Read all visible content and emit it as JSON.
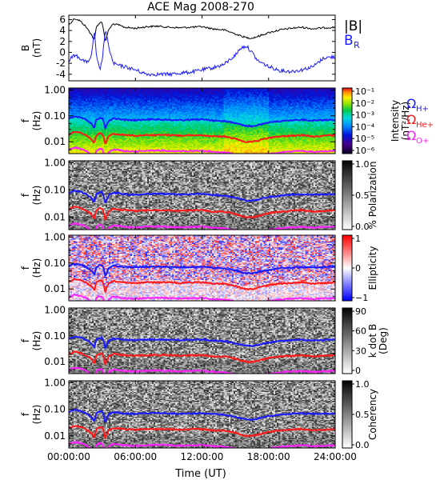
{
  "title": "ACE Mag 2008-270",
  "colors": {
    "B_total": "#000000",
    "B_R": "#1a1aff",
    "H_plus": "#1a1aff",
    "He_plus": "#ff1a1a",
    "O_plus": "#ff22ff"
  },
  "chart_data": {
    "type": "line",
    "x_label": "Time (UT)",
    "x_ticks": [
      "00:00:00",
      "06:00:00",
      "12:00:00",
      "18:00:00",
      "24:00:00"
    ],
    "x_range": [
      0,
      24
    ],
    "panels": [
      {
        "id": "b",
        "ylabel_line1": "B",
        "ylabel_line2": "(nT)",
        "y_ticks": [
          "6",
          "4",
          "2",
          "0",
          "-2",
          "-4"
        ],
        "y_tick_values": [
          6,
          4,
          2,
          0,
          -2,
          -4
        ],
        "y_range": [
          -5.2,
          6.8
        ],
        "legend": [
          {
            "text": "|B|",
            "sub": "",
            "color": "#000000"
          },
          {
            "text": "B",
            "sub": "R",
            "color": "#1a1aff"
          }
        ],
        "series": [
          {
            "name": "|B|",
            "color": "#000000",
            "x": [
              0,
              0.5,
              1,
              1.5,
              2,
              2.3,
              2.5,
              2.8,
              3,
              3.3,
              3.6,
              4,
              4.5,
              5,
              6,
              7,
              8,
              9,
              10,
              11,
              12,
              13,
              14,
              15,
              15.5,
              16,
              16.5,
              17,
              18,
              19,
              20,
              21,
              22,
              23,
              24
            ],
            "y": [
              5.0,
              6.2,
              5.8,
              4.8,
              3.4,
              2.2,
              4.8,
              5.4,
              5.6,
              2.0,
              4.2,
              5.2,
              5.0,
              4.6,
              4.4,
              4.7,
              4.8,
              4.6,
              4.5,
              4.6,
              4.7,
              4.3,
              4.1,
              3.4,
              3.0,
              2.7,
              2.6,
              2.9,
              3.6,
              4.1,
              4.4,
              4.6,
              4.3,
              4.5,
              4.6
            ]
          },
          {
            "name": "B_R",
            "color": "#1a1aff",
            "x": [
              0,
              0.5,
              1,
              1.5,
              2,
              2.3,
              2.5,
              2.8,
              3,
              3.3,
              3.6,
              4,
              4.5,
              5,
              6,
              7,
              8,
              9,
              10,
              11,
              12,
              13,
              14,
              15,
              15.5,
              16,
              16.5,
              17,
              18,
              19,
              20,
              21,
              22,
              23,
              24
            ],
            "y": [
              -1.5,
              -0.5,
              -1.0,
              -1.8,
              -1.2,
              4.0,
              -1.0,
              -3.2,
              -1.5,
              4.2,
              1.0,
              -2.0,
              -2.4,
              -2.6,
              -3.2,
              -4.0,
              -4.0,
              -4.0,
              -3.8,
              -3.6,
              -3.2,
              -2.8,
              -2.2,
              -0.5,
              0.8,
              1.2,
              0.0,
              -1.5,
              -2.6,
              -3.3,
              -3.5,
              -3.2,
              -2.6,
              -1.0,
              -0.8
            ]
          }
        ]
      },
      {
        "id": "power",
        "ylabel_line1": "f",
        "ylabel_line2": "(Hz)",
        "y_ticks": [
          "1.00",
          "0.10",
          "0.01"
        ],
        "colorbar": {
          "kind": "rainbow",
          "label": "Intensity",
          "units": "(nT²/Hz)",
          "ticks": [
            "10⁻¹",
            "10⁻²",
            "10⁻³",
            "10⁻⁴",
            "10⁻⁵",
            "10⁻⁶"
          ]
        }
      },
      {
        "id": "polarization",
        "ylabel_line1": "f",
        "ylabel_line2": "(Hz)",
        "y_ticks": [
          "1.00",
          "0.10",
          "0.01"
        ],
        "colorbar": {
          "kind": "gray",
          "label": "% Polarization",
          "units": "",
          "ticks": [
            "1.0",
            "0.5",
            "0.0"
          ]
        }
      },
      {
        "id": "ellipticity",
        "ylabel_line1": "f",
        "ylabel_line2": "(Hz)",
        "y_ticks": [
          "1.00",
          "0.10",
          "0.01"
        ],
        "colorbar": {
          "kind": "bwr",
          "label": "Ellipticity",
          "units": "",
          "ticks": [
            "1",
            "0",
            "−1"
          ]
        }
      },
      {
        "id": "kdotb",
        "ylabel_line1": "f",
        "ylabel_line2": "(Hz)",
        "y_ticks": [
          "1.00",
          "0.10",
          "0.01"
        ],
        "colorbar": {
          "kind": "gray",
          "label": "k dot B",
          "units": "(Deg)",
          "ticks": [
            "90",
            "60",
            "30",
            "0"
          ]
        }
      },
      {
        "id": "coherency",
        "ylabel_line1": "f",
        "ylabel_line2": "(Hz)",
        "y_ticks": [
          "1.00",
          "0.10",
          "0.01"
        ],
        "colorbar": {
          "kind": "gray",
          "label": "Coherency",
          "units": "",
          "ticks": [
            "1.0",
            "0.5",
            "0.0"
          ]
        }
      }
    ],
    "gyrofrequency_lines": [
      {
        "name": "ΩH+",
        "color": "#1a1aff",
        "x": [
          0,
          0.5,
          1,
          1.5,
          2,
          2.3,
          2.5,
          2.8,
          3,
          3.3,
          3.6,
          4,
          4.5,
          5,
          6,
          7,
          8,
          9,
          10,
          11,
          12,
          13,
          14,
          15,
          15.5,
          16,
          16.5,
          17,
          18,
          19,
          20,
          21,
          22,
          23,
          24
        ],
        "y": [
          0.076,
          0.094,
          0.088,
          0.073,
          0.052,
          0.034,
          0.073,
          0.082,
          0.085,
          0.03,
          0.064,
          0.079,
          0.076,
          0.07,
          0.067,
          0.072,
          0.073,
          0.07,
          0.069,
          0.07,
          0.072,
          0.066,
          0.062,
          0.052,
          0.046,
          0.041,
          0.04,
          0.044,
          0.055,
          0.062,
          0.067,
          0.07,
          0.066,
          0.069,
          0.07
        ]
      },
      {
        "name": "ΩHe+",
        "color": "#ff1a1a",
        "x": [
          0,
          0.5,
          1,
          1.5,
          2,
          2.3,
          2.5,
          2.8,
          3,
          3.3,
          3.6,
          4,
          4.5,
          5,
          6,
          7,
          8,
          9,
          10,
          11,
          12,
          13,
          14,
          15,
          15.5,
          16,
          16.5,
          17,
          18,
          19,
          20,
          21,
          22,
          23,
          24
        ],
        "y": [
          0.019,
          0.024,
          0.022,
          0.018,
          0.013,
          0.0085,
          0.018,
          0.021,
          0.021,
          0.0076,
          0.016,
          0.02,
          0.019,
          0.018,
          0.017,
          0.018,
          0.018,
          0.018,
          0.017,
          0.018,
          0.018,
          0.016,
          0.016,
          0.013,
          0.011,
          0.01,
          0.01,
          0.011,
          0.014,
          0.016,
          0.017,
          0.018,
          0.016,
          0.017,
          0.018
        ]
      },
      {
        "name": "ΩO+",
        "color": "#ff22ff",
        "x": [
          0,
          0.5,
          1,
          1.5,
          2,
          2.3,
          2.5,
          2.8,
          3,
          3.3,
          3.6,
          4,
          4.5,
          5,
          6,
          7,
          8,
          9,
          10,
          11,
          12,
          13,
          14,
          15,
          15.5,
          16,
          16.5,
          17,
          18,
          19,
          20,
          21,
          22,
          23,
          24
        ],
        "y": [
          0.0048,
          0.0059,
          0.0055,
          0.0046,
          0.0033,
          0.0021,
          0.0046,
          0.0052,
          0.0053,
          0.0019,
          0.004,
          0.005,
          0.0048,
          0.0044,
          0.0042,
          0.0045,
          0.0046,
          0.0044,
          0.0043,
          0.0044,
          0.0045,
          0.0041,
          0.0039,
          0.0033,
          0.0029,
          0.0026,
          0.0025,
          0.0028,
          0.0034,
          0.0039,
          0.0042,
          0.0044,
          0.0041,
          0.0043,
          0.0044
        ]
      }
    ],
    "gyro_legend": [
      {
        "symbol": "Ω",
        "sub": "H+",
        "color": "#1a1aff"
      },
      {
        "symbol": "Ω",
        "sub": "He+",
        "color": "#ff1a1a"
      },
      {
        "symbol": "Ω",
        "sub": "O+",
        "color": "#ff22ff"
      }
    ]
  }
}
